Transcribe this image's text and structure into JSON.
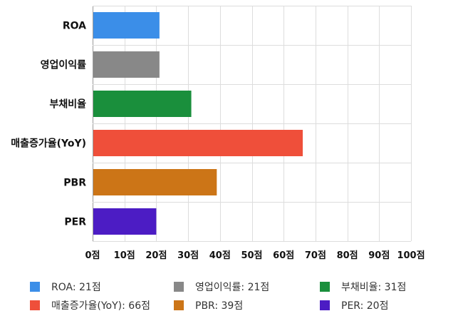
{
  "chart_data": {
    "type": "bar",
    "orientation": "horizontal",
    "categories": [
      "ROA",
      "영업이익률",
      "부채비율",
      "매출증가율(YoY)",
      "PBR",
      "PER"
    ],
    "values": [
      21,
      21,
      31,
      66,
      39,
      20
    ],
    "colors": [
      "#3b8ee8",
      "#888888",
      "#1a8f3c",
      "#ef4f3a",
      "#cc7517",
      "#4c1cc4"
    ],
    "xlim": [
      0,
      100
    ],
    "xticks": [
      0,
      10,
      20,
      30,
      40,
      50,
      60,
      70,
      80,
      90,
      100
    ],
    "tick_suffix": "점",
    "grid": true,
    "legend_position": "bottom"
  },
  "legend": {
    "separator": ": ",
    "unit": "점"
  }
}
